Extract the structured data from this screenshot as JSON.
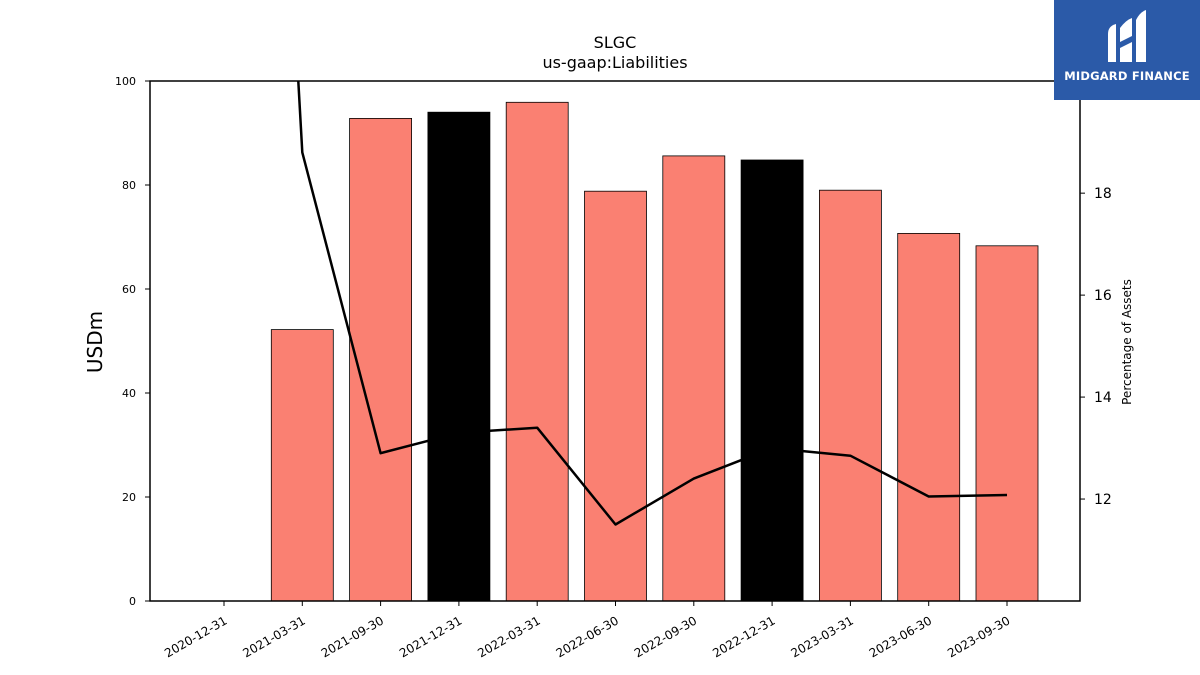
{
  "logo": {
    "text": "MIDGARD FINANCE"
  },
  "chart_data": {
    "type": "bar",
    "title": "SLGC",
    "subtitle": "us-gaap:Liabilities",
    "ylabel": "USDm",
    "y2label": "Percentage of Assets",
    "ylim": [
      0,
      100
    ],
    "yticks": [
      0,
      20,
      40,
      60,
      80,
      100
    ],
    "y2lim": [
      10,
      20.2
    ],
    "y2ticks": [
      12,
      14,
      16,
      18
    ],
    "categories": [
      "2020-12-31",
      "2021-03-31",
      "2021-09-30",
      "2021-12-31",
      "2022-03-31",
      "2022-06-30",
      "2022-09-30",
      "2022-12-31",
      "2023-03-31",
      "2023-06-30",
      "2023-09-30"
    ],
    "bars": {
      "values": [
        null,
        52.2,
        92.8,
        94.0,
        95.9,
        78.8,
        85.6,
        84.8,
        79.0,
        70.7,
        68.3
      ],
      "colors": [
        "#fa8072",
        "#fa8072",
        "#fa8072",
        "#000000",
        "#fa8072",
        "#fa8072",
        "#fa8072",
        "#000000",
        "#fa8072",
        "#fa8072",
        "#fa8072"
      ]
    },
    "line": {
      "values": [
        null,
        18.8,
        12.9,
        13.3,
        13.4,
        11.5,
        12.4,
        13.0,
        12.85,
        12.05,
        12.08
      ],
      "color": "#000000",
      "start_above_axis": true
    },
    "grid": false
  }
}
